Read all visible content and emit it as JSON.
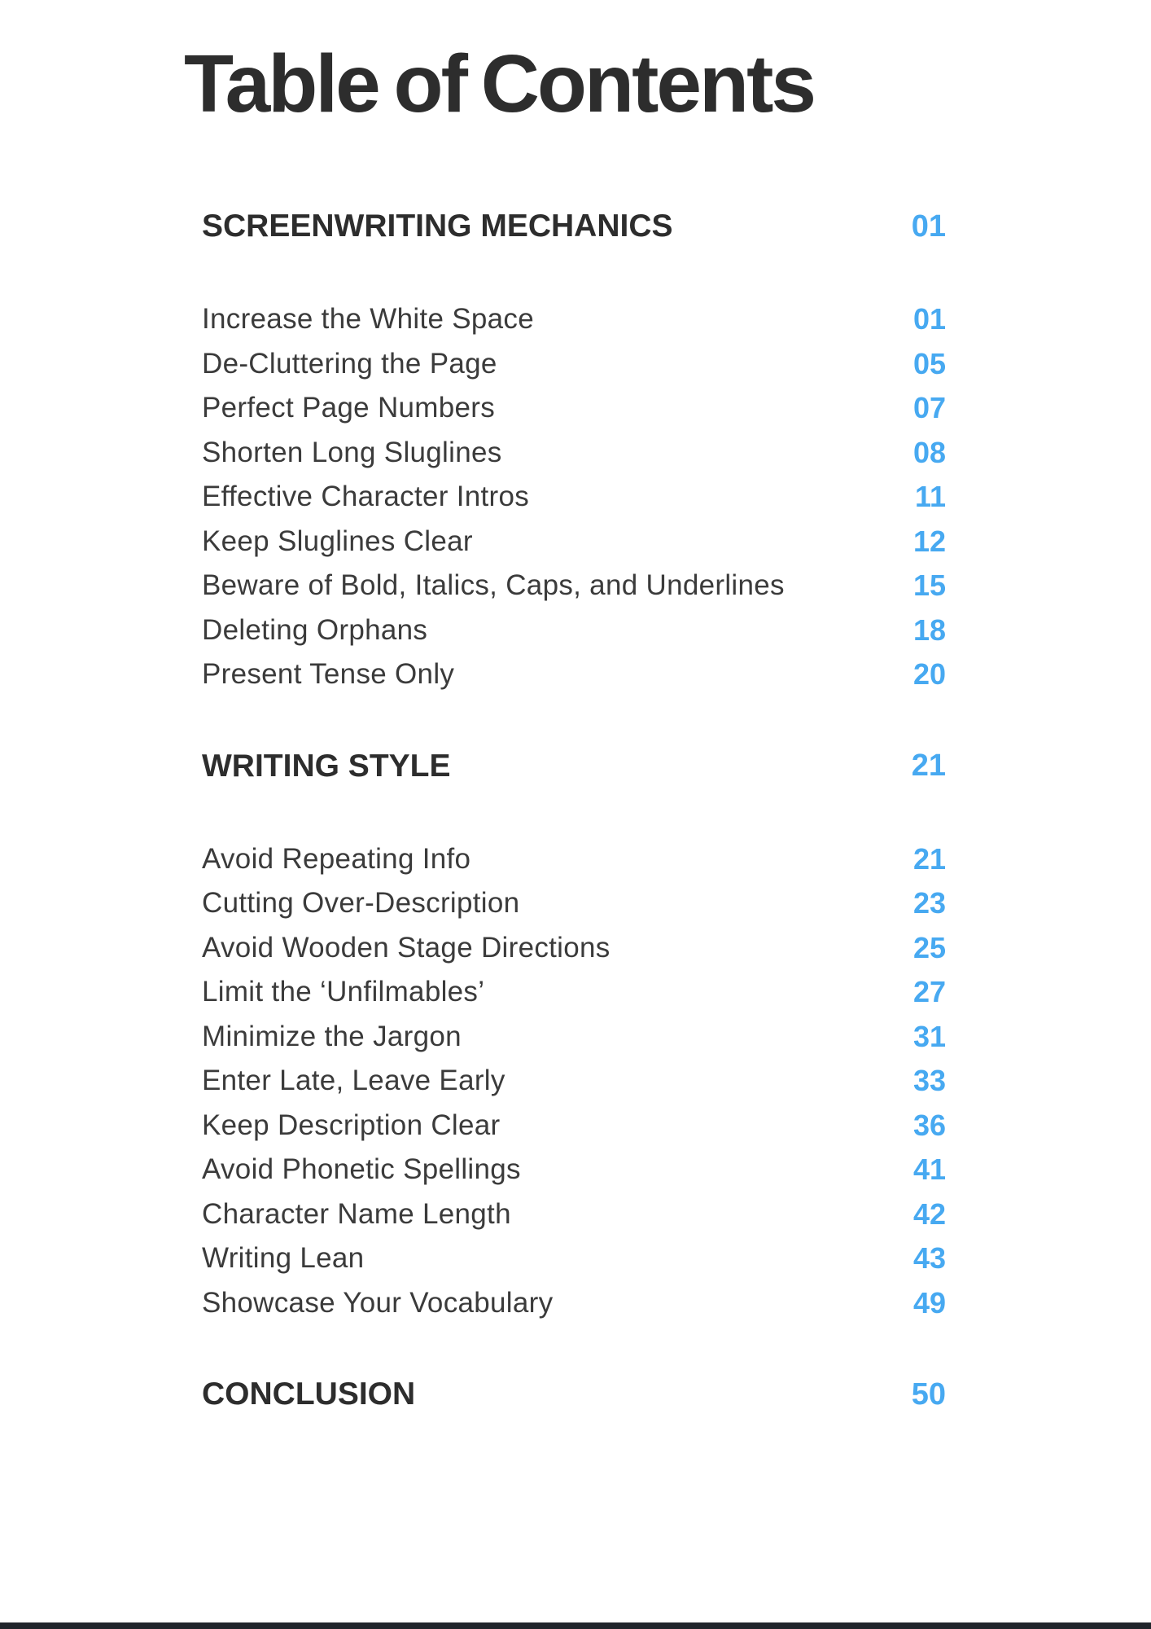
{
  "page": {
    "title": "Table of Contents",
    "accent_color": "#47a9f1",
    "heading_color": "#2d2d2d",
    "item_color": "#3b3b3b",
    "footer_bar_color": "#20252b"
  },
  "toc": {
    "sections": [
      {
        "title": "SCREENWRITING MECHANICS",
        "page": "01",
        "items": [
          {
            "label": "Increase the White Space",
            "page": "01"
          },
          {
            "label": "De-Cluttering the Page",
            "page": "05"
          },
          {
            "label": "Perfect Page Numbers",
            "page": "07"
          },
          {
            "label": "Shorten Long Sluglines",
            "page": "08"
          },
          {
            "label": "Effective Character Intros",
            "page": "11"
          },
          {
            "label": "Keep Sluglines Clear",
            "page": "12"
          },
          {
            "label": "Beware of Bold, Italics, Caps, and Underlines",
            "page": "15"
          },
          {
            "label": "Deleting Orphans",
            "page": "18"
          },
          {
            "label": "Present Tense Only",
            "page": "20"
          }
        ]
      },
      {
        "title": "WRITING STYLE",
        "page": "21",
        "items": [
          {
            "label": "Avoid Repeating Info",
            "page": "21"
          },
          {
            "label": "Cutting Over-Description",
            "page": "23"
          },
          {
            "label": "Avoid Wooden Stage Directions",
            "page": "25"
          },
          {
            "label": "Limit the ‘Unfilmables’",
            "page": "27"
          },
          {
            "label": "Minimize the Jargon",
            "page": "31"
          },
          {
            "label": "Enter Late, Leave Early",
            "page": "33"
          },
          {
            "label": "Keep Description Clear",
            "page": "36"
          },
          {
            "label": "Avoid Phonetic Spellings",
            "page": "41"
          },
          {
            "label": "Character Name Length",
            "page": "42"
          },
          {
            "label": "Writing Lean",
            "page": "43"
          },
          {
            "label": "Showcase Your Vocabulary",
            "page": "49"
          }
        ]
      },
      {
        "title": "CONCLUSION",
        "page": "50",
        "items": []
      }
    ]
  }
}
